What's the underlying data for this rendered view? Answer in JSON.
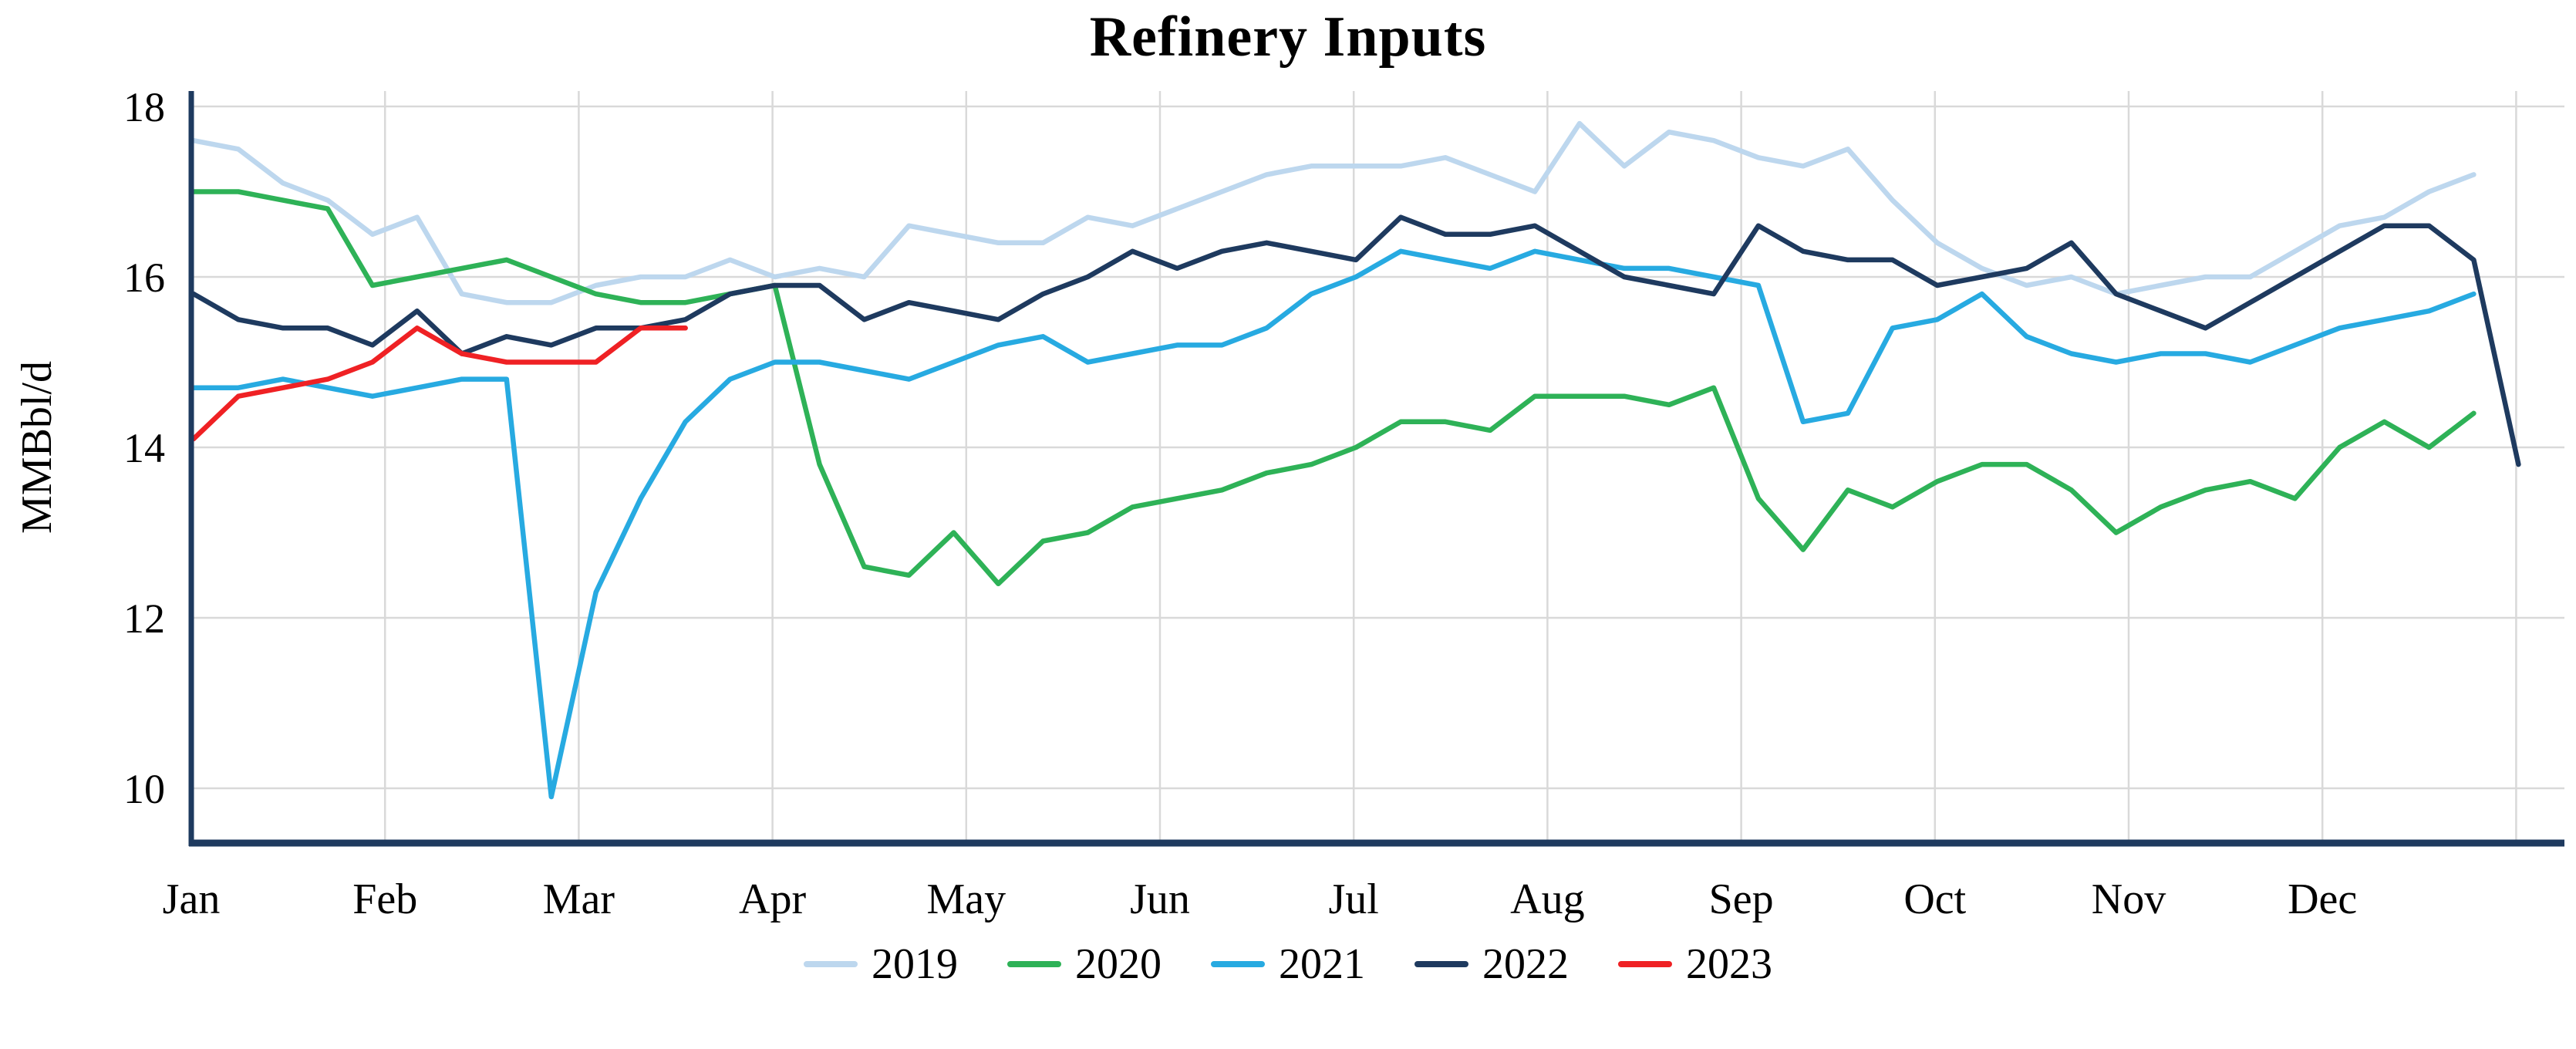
{
  "chart_data": {
    "type": "line",
    "title": "Refinery Inputs",
    "ylabel": "MMBbl/d",
    "xlabel": "",
    "x_frequency": "weekly",
    "x_tick_labels": [
      "Jan",
      "Feb",
      "Mar",
      "Apr",
      "May",
      "Jun",
      "Jul",
      "Aug",
      "Sep",
      "Oct",
      "Nov",
      "Dec"
    ],
    "y_ticks": [
      10,
      12,
      14,
      16,
      18
    ],
    "ylim": [
      9.4,
      18.2
    ],
    "grid": true,
    "legend_position": "bottom",
    "axis_color": "#1e3a5f",
    "grid_color": "#d9d9d9",
    "series": [
      {
        "name": "2019",
        "color": "#bdd7ee",
        "values": [
          17.6,
          17.5,
          17.1,
          16.9,
          16.5,
          16.7,
          15.8,
          15.7,
          15.7,
          15.9,
          16.0,
          16.0,
          16.2,
          16.0,
          16.1,
          16.0,
          16.6,
          16.5,
          16.4,
          16.4,
          16.7,
          16.6,
          16.8,
          17.0,
          17.2,
          17.3,
          17.3,
          17.3,
          17.4,
          17.2,
          17.0,
          17.8,
          17.3,
          17.7,
          17.6,
          17.4,
          17.3,
          17.5,
          16.9,
          16.4,
          16.1,
          15.9,
          16.0,
          15.8,
          15.9,
          16.0,
          16.0,
          16.3,
          16.6,
          16.7,
          17.0,
          17.2
        ]
      },
      {
        "name": "2020",
        "color": "#2eb257",
        "values": [
          17.0,
          17.0,
          16.9,
          16.8,
          15.9,
          16.0,
          16.1,
          16.2,
          16.0,
          15.8,
          15.7,
          15.7,
          15.8,
          15.9,
          13.8,
          12.6,
          12.5,
          13.0,
          12.4,
          12.9,
          13.0,
          13.3,
          13.4,
          13.5,
          13.7,
          13.8,
          14.0,
          14.3,
          14.3,
          14.2,
          14.6,
          14.6,
          14.6,
          14.5,
          14.7,
          13.4,
          12.8,
          13.5,
          13.3,
          13.6,
          13.8,
          13.8,
          13.5,
          13.0,
          13.3,
          13.5,
          13.6,
          13.4,
          14.0,
          14.3,
          14.0,
          14.4
        ]
      },
      {
        "name": "2021",
        "color": "#27aae1",
        "values": [
          14.7,
          14.7,
          14.8,
          14.7,
          14.6,
          14.7,
          14.8,
          14.8,
          9.9,
          12.3,
          13.4,
          14.3,
          14.8,
          15.0,
          15.0,
          14.9,
          14.8,
          15.0,
          15.2,
          15.3,
          15.0,
          15.1,
          15.2,
          15.2,
          15.4,
          15.8,
          16.0,
          16.3,
          16.2,
          16.1,
          16.3,
          16.2,
          16.1,
          16.1,
          16.0,
          15.9,
          14.3,
          14.4,
          15.4,
          15.5,
          15.8,
          15.3,
          15.1,
          15.0,
          15.1,
          15.1,
          15.0,
          15.2,
          15.4,
          15.5,
          15.6,
          15.8
        ]
      },
      {
        "name": "2022",
        "color": "#1e3a5f",
        "values": [
          15.8,
          15.5,
          15.4,
          15.4,
          15.2,
          15.6,
          15.1,
          15.3,
          15.2,
          15.4,
          15.4,
          15.5,
          15.8,
          15.9,
          15.9,
          15.5,
          15.7,
          15.6,
          15.5,
          15.8,
          16.0,
          16.3,
          16.1,
          16.3,
          16.4,
          16.3,
          16.2,
          16.7,
          16.5,
          16.5,
          16.6,
          16.3,
          16.0,
          15.9,
          15.8,
          16.6,
          16.3,
          16.2,
          16.2,
          15.9,
          16.0,
          16.1,
          16.4,
          15.8,
          15.6,
          15.4,
          15.7,
          16.0,
          16.3,
          16.6,
          16.6,
          16.2,
          13.8
        ]
      },
      {
        "name": "2023",
        "color": "#ef2124",
        "values": [
          14.1,
          14.6,
          14.7,
          14.8,
          15.0,
          15.4,
          15.1,
          15.0,
          15.0,
          15.0,
          15.4,
          15.4
        ]
      }
    ]
  }
}
